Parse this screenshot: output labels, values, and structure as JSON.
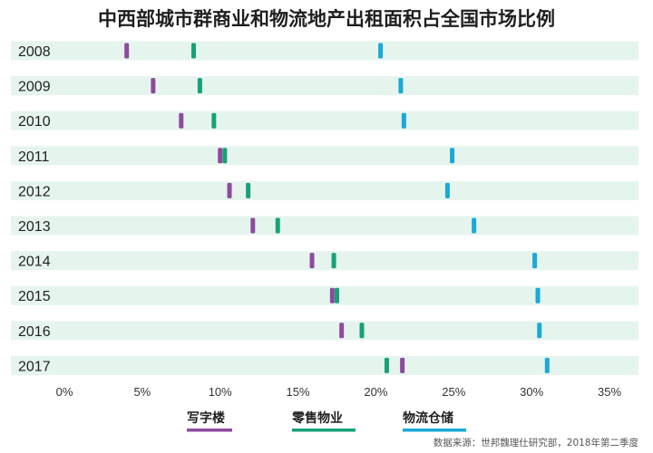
{
  "chart_data": {
    "type": "scatter",
    "title": "中西部城市群商业和物流地产出租面积占全国市场比例",
    "source": "数据来源：世邦魏理仕研究部，2018年第二季度",
    "categories": [
      "2008",
      "2009",
      "2010",
      "2011",
      "2012",
      "2013",
      "2014",
      "2015",
      "2016",
      "2017"
    ],
    "x_ticks": [
      "0%",
      "5%",
      "10%",
      "15%",
      "20%",
      "25%",
      "30%",
      "35%"
    ],
    "xlim": [
      0,
      35
    ],
    "series": [
      {
        "name": "写字楼",
        "color": "#8e4a9e",
        "values": [
          4.0,
          5.7,
          7.5,
          10.0,
          10.6,
          12.1,
          15.9,
          17.2,
          17.8,
          21.7
        ]
      },
      {
        "name": "零售物业",
        "color": "#16a278",
        "values": [
          8.3,
          8.7,
          9.6,
          10.3,
          11.8,
          13.7,
          17.3,
          17.5,
          19.1,
          20.7
        ]
      },
      {
        "name": "物流仓储",
        "color": "#1ba9d6",
        "values": [
          20.3,
          21.6,
          21.8,
          24.9,
          24.6,
          26.3,
          30.2,
          30.4,
          30.5,
          31.0
        ]
      }
    ],
    "row_band_color": "#e6f4ee"
  }
}
